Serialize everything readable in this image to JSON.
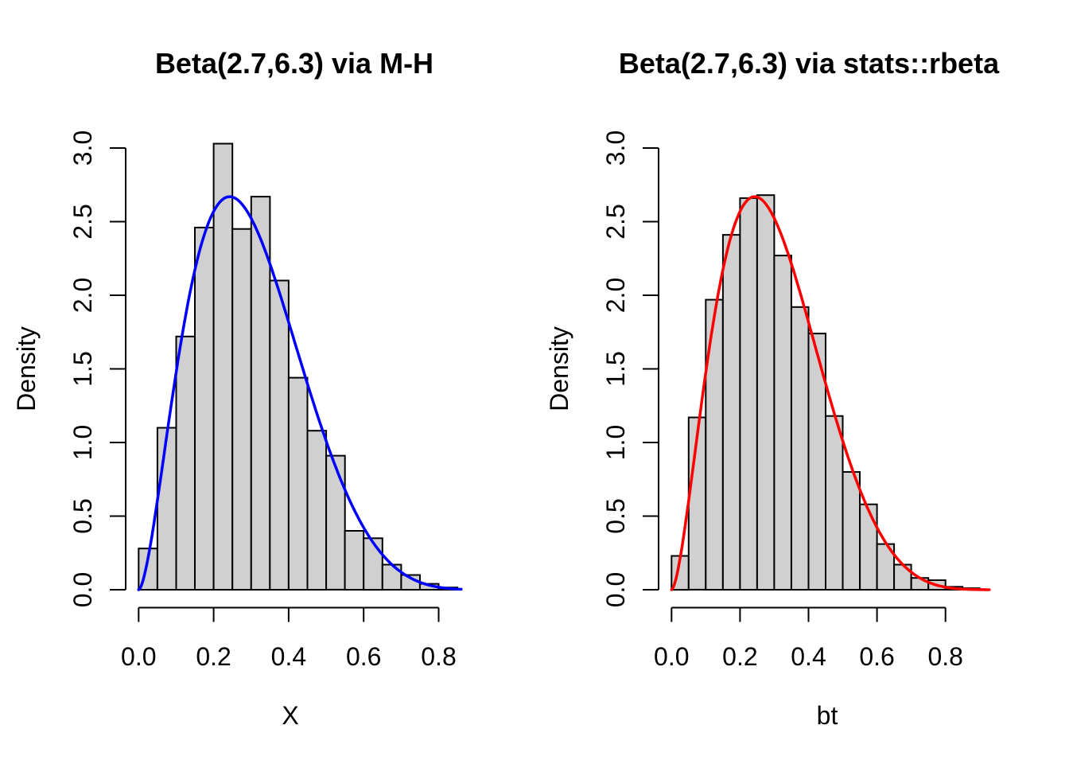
{
  "figure": {
    "background": "#ffffff",
    "bar_fill": "#d0d0d0",
    "bar_border": "#000000",
    "axis_color": "#000000"
  },
  "chart_data": [
    {
      "type": "histogram",
      "title": "Beta(2.7,6.3) via M-H",
      "xlabel": "X",
      "ylabel": "Density",
      "bin_start": 0.0,
      "bin_width": 0.05,
      "bar_heights": [
        0.28,
        1.1,
        1.72,
        2.46,
        3.03,
        2.45,
        2.67,
        2.1,
        1.44,
        1.08,
        0.91,
        0.4,
        0.35,
        0.17,
        0.1,
        0.04,
        0.015
      ],
      "x_ticks": [
        0.0,
        0.2,
        0.4,
        0.6,
        0.8
      ],
      "x_tick_labels": [
        "0.0",
        "0.2",
        "0.4",
        "0.6",
        "0.8"
      ],
      "y_ticks": [
        0.0,
        0.5,
        1.0,
        1.5,
        2.0,
        2.5,
        3.0
      ],
      "y_tick_labels": [
        "0.0",
        "0.5",
        "1.0",
        "1.5",
        "2.0",
        "2.5",
        "3.0"
      ],
      "xlim": [
        0.0,
        0.86
      ],
      "ylim": [
        0.0,
        3.0
      ],
      "grid": false,
      "curve": {
        "distribution": "beta",
        "alpha": 2.7,
        "beta": 6.3,
        "color": "#0000ff",
        "x_min": 0.0,
        "x_max": 0.86
      }
    },
    {
      "type": "histogram",
      "title": "Beta(2.7,6.3) via stats::rbeta",
      "xlabel": "bt",
      "ylabel": "Density",
      "bin_start": 0.0,
      "bin_width": 0.05,
      "bar_heights": [
        0.23,
        1.17,
        1.97,
        2.41,
        2.66,
        2.68,
        2.27,
        1.92,
        1.74,
        1.18,
        0.8,
        0.58,
        0.31,
        0.17,
        0.08,
        0.065,
        0.02,
        0.01
      ],
      "x_ticks": [
        0.0,
        0.2,
        0.4,
        0.6,
        0.8
      ],
      "x_tick_labels": [
        "0.0",
        "0.2",
        "0.4",
        "0.6",
        "0.8"
      ],
      "y_ticks": [
        0.0,
        0.5,
        1.0,
        1.5,
        2.0,
        2.5,
        3.0
      ],
      "y_tick_labels": [
        "0.0",
        "0.5",
        "1.0",
        "1.5",
        "2.0",
        "2.5",
        "3.0"
      ],
      "xlim": [
        0.0,
        0.93
      ],
      "ylim": [
        0.0,
        3.0
      ],
      "grid": false,
      "curve": {
        "distribution": "beta",
        "alpha": 2.7,
        "beta": 6.3,
        "color": "#ff0000",
        "x_min": 0.0,
        "x_max": 0.93
      }
    }
  ]
}
